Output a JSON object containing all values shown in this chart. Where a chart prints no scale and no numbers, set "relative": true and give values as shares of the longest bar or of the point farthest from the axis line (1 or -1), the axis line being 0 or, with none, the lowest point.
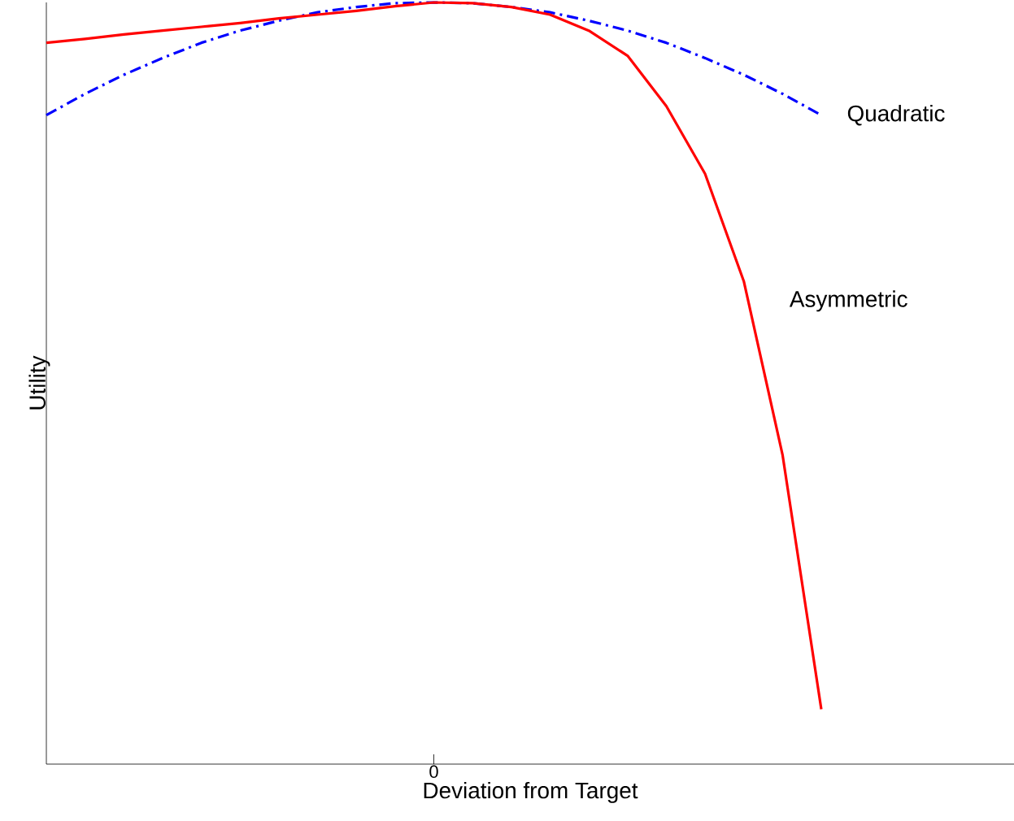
{
  "chart_data": {
    "type": "line",
    "xlabel": "Deviation from Target",
    "ylabel": "Utility",
    "relative": true,
    "categories": [
      null,
      null,
      null,
      null,
      null,
      null,
      null,
      null,
      null,
      null,
      null,
      null,
      null,
      null,
      null,
      null,
      null,
      null,
      null,
      null,
      null
    ],
    "annotations": [
      "0"
    ],
    "marker": "none",
    "series": [
      {
        "name": "Quadratic",
        "color": "#0000ff",
        "line_style": "dashdot",
        "values": [
          0.852,
          0.88,
          0.905,
          0.927,
          0.947,
          0.963,
          0.976,
          0.987,
          0.994,
          0.999,
          1,
          0.999,
          0.994,
          0.987,
          0.976,
          0.963,
          0.947,
          0.927,
          0.905,
          0.88,
          0.852
        ]
      },
      {
        "name": "Asymmetric",
        "color": "#ff0000",
        "line_style": "solid",
        "values": [
          0.947,
          0.952,
          0.958,
          0.963,
          0.968,
          0.973,
          0.979,
          0.984,
          0.989,
          0.995,
          1,
          0.999,
          0.994,
          0.984,
          0.963,
          0.93,
          0.864,
          0.775,
          0.634,
          0.406,
          0.072
        ]
      }
    ]
  }
}
